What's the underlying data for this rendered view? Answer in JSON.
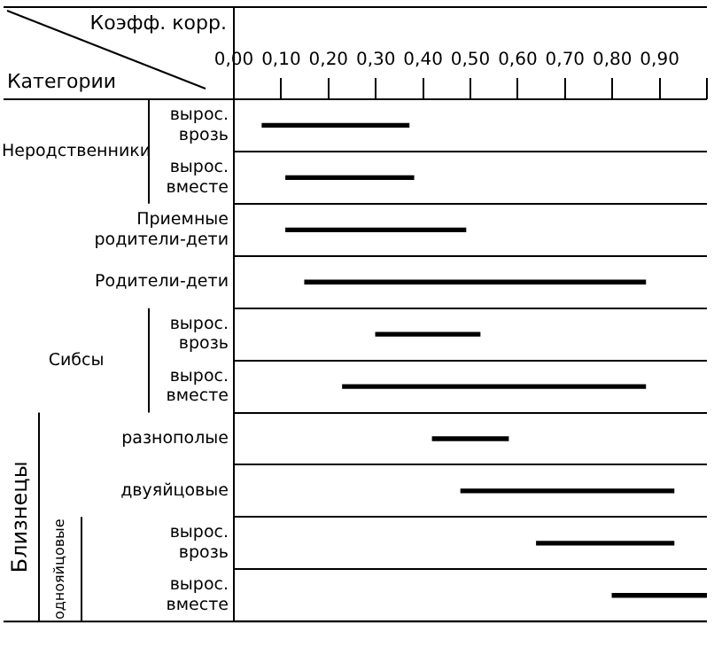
{
  "chart_data": {
    "type": "bar",
    "orientation": "horizontal",
    "xlabel": "Коэфф. корр.",
    "ylabel": "Категории",
    "categories": [
      "вырос. врозь",
      "вырос. вместе",
      "Приемные родители-дети",
      "Родители-дети",
      "вырос. врозь",
      "вырос. вместе",
      "разнополые",
      "двуяйцовые",
      "вырос. врозь",
      "вырос. вместе"
    ],
    "base": [
      0.06,
      0.11,
      0.11,
      0.15,
      0.3,
      0.23,
      0.42,
      0.48,
      0.64,
      0.8
    ],
    "values": [
      0.31,
      0.27,
      0.38,
      0.72,
      0.22,
      0.64,
      0.16,
      0.45,
      0.29,
      0.2
    ],
    "color": "#000000",
    "xlim": [
      0,
      1
    ],
    "xticks": [
      {
        "value": 0,
        "label": "0,00"
      },
      {
        "value": 0.1,
        "label": "0,10"
      },
      {
        "value": 0.2,
        "label": "0,20"
      },
      {
        "value": 0.3,
        "label": "0,30"
      },
      {
        "value": 0.4,
        "label": "0,40"
      },
      {
        "value": 0.5,
        "label": "0,50"
      },
      {
        "value": 0.6,
        "label": "0,60"
      },
      {
        "value": 0.7,
        "label": "0,70"
      },
      {
        "value": 0.8,
        "label": "0,80"
      },
      {
        "value": 0.9,
        "label": "0,90"
      },
      {
        "value": 1,
        "label": null
      }
    ],
    "grid": "y",
    "legend": false,
    "annotations": [
      "Неродственники",
      "Сибсы",
      "Близнецы",
      "однояйцовые"
    ]
  }
}
